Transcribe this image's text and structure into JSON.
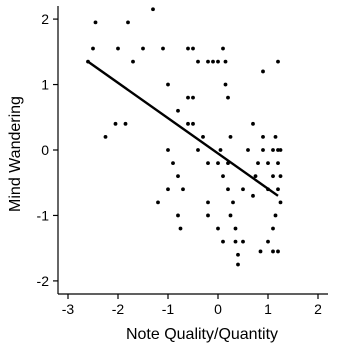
{
  "chart_data": {
    "type": "scatter",
    "title": "",
    "xlabel": "Note Quality/Quantity",
    "ylabel": "Mind Wandering",
    "xlim": [
      -3.2,
      2.2
    ],
    "ylim": [
      -2.2,
      2.2
    ],
    "xticks": [
      -3,
      -2,
      -1,
      0,
      1,
      2
    ],
    "yticks": [
      -2,
      -1,
      0,
      1,
      2
    ],
    "xtick_labels": [
      "-3",
      "-2",
      "-1",
      "0",
      "1",
      "2"
    ],
    "ytick_labels": [
      "-2",
      "-1",
      "0",
      "1",
      "2"
    ],
    "grid": false,
    "points": [
      [
        -2.45,
        1.95
      ],
      [
        -1.8,
        1.95
      ],
      [
        -1.3,
        2.15
      ],
      [
        -2.6,
        1.35
      ],
      [
        -2.5,
        1.55
      ],
      [
        -2.0,
        1.55
      ],
      [
        -1.7,
        1.35
      ],
      [
        -1.5,
        1.55
      ],
      [
        -1.1,
        1.55
      ],
      [
        -2.25,
        0.2
      ],
      [
        -2.05,
        0.4
      ],
      [
        -1.85,
        0.4
      ],
      [
        -1.0,
        1.0
      ],
      [
        -0.8,
        0.6
      ],
      [
        -0.6,
        0.8
      ],
      [
        -0.5,
        0.8
      ],
      [
        -0.6,
        1.55
      ],
      [
        -0.5,
        1.55
      ],
      [
        -0.4,
        1.35
      ],
      [
        -0.2,
        1.35
      ],
      [
        -0.1,
        1.35
      ],
      [
        0.0,
        1.35
      ],
      [
        0.1,
        1.55
      ],
      [
        0.15,
        1.35
      ],
      [
        0.2,
        0.8
      ],
      [
        0.15,
        1.0
      ],
      [
        0.9,
        1.2
      ],
      [
        1.2,
        1.35
      ],
      [
        -0.6,
        0.4
      ],
      [
        -0.5,
        0.4
      ],
      [
        -0.3,
        0.2
      ],
      [
        -1.0,
        0.0
      ],
      [
        -0.9,
        -0.2
      ],
      [
        -0.8,
        -0.4
      ],
      [
        -0.7,
        -0.6
      ],
      [
        -1.0,
        -0.6
      ],
      [
        -1.2,
        -0.8
      ],
      [
        -0.8,
        -1.0
      ],
      [
        -0.75,
        -1.2
      ],
      [
        -0.4,
        0.0
      ],
      [
        -0.2,
        -0.2
      ],
      [
        0.0,
        -0.2
      ],
      [
        0.05,
        0.0
      ],
      [
        0.1,
        -0.4
      ],
      [
        0.2,
        -0.2
      ],
      [
        0.2,
        -0.6
      ],
      [
        0.3,
        -0.8
      ],
      [
        0.25,
        -1.0
      ],
      [
        0.35,
        -1.2
      ],
      [
        0.35,
        -1.4
      ],
      [
        0.4,
        -1.6
      ],
      [
        0.4,
        -1.75
      ],
      [
        0.5,
        -1.4
      ],
      [
        0.0,
        -1.2
      ],
      [
        -0.2,
        -0.8
      ],
      [
        -0.2,
        -1.0
      ],
      [
        0.1,
        -1.4
      ],
      [
        0.25,
        0.2
      ],
      [
        0.5,
        -0.6
      ],
      [
        0.6,
        0.0
      ],
      [
        0.7,
        0.4
      ],
      [
        0.75,
        -0.4
      ],
      [
        0.8,
        -0.2
      ],
      [
        0.9,
        0.0
      ],
      [
        0.9,
        0.2
      ],
      [
        1.0,
        -0.6
      ],
      [
        1.0,
        -0.2
      ],
      [
        1.1,
        0.0
      ],
      [
        1.1,
        -0.4
      ],
      [
        1.15,
        0.2
      ],
      [
        1.2,
        -0.2
      ],
      [
        1.2,
        -0.6
      ],
      [
        1.25,
        -0.8
      ],
      [
        1.25,
        0.0
      ],
      [
        1.15,
        -1.0
      ],
      [
        1.1,
        -1.2
      ],
      [
        1.0,
        -1.4
      ],
      [
        1.1,
        -1.55
      ],
      [
        1.2,
        -1.55
      ],
      [
        0.85,
        -1.55
      ],
      [
        0.7,
        -0.7
      ],
      [
        1.25,
        -0.4
      ],
      [
        1.2,
        0.0
      ]
    ],
    "regression_line": {
      "x": [
        -2.6,
        1.2
      ],
      "y": [
        1.35,
        -0.7
      ]
    }
  }
}
